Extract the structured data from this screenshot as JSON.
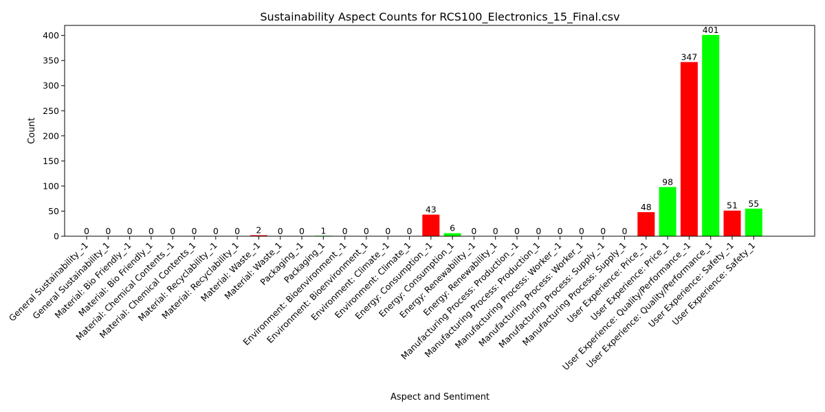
{
  "chart_data": {
    "type": "bar",
    "title": "Sustainability Aspect Counts for RCS100_Electronics_15_Final.csv",
    "xlabel": "Aspect and Sentiment",
    "ylabel": "Count",
    "ylim": [
      0,
      420
    ],
    "yticks": [
      0,
      50,
      100,
      150,
      200,
      250,
      300,
      350,
      400
    ],
    "grid": false,
    "legend": "none",
    "colors": {
      "negative": "#ff0000",
      "positive": "#00ff00"
    },
    "categories": [
      "General Sustainability_-1",
      "General Sustainability_1",
      "Material: Bio Friendly_-1",
      "Material: Bio Friendly_1",
      "Material: Chemical Contents_-1",
      "Material: Chemical Contents_1",
      "Material: Recyclability_-1",
      "Material: Recyclability_1",
      "Material: Waste_-1",
      "Material: Waste_1",
      "Packaging_-1",
      "Packaging_1",
      "Environment: Bioenvironment_-1",
      "Environment: Bioenvironment_1",
      "Environment: Climate_-1",
      "Environment: Climate_1",
      "Energy: Consumption_-1",
      "Energy: Consumption_1",
      "Energy: Renewability_-1",
      "Energy: Renewability_1",
      "Manufacturing Process: Production_-1",
      "Manufacturing Process: Production_1",
      "Manufacturing Process: Worker_-1",
      "Manufacturing Process: Worker_1",
      "Manufacturing Process: Supply_-1",
      "Manufacturing Process: Supply_1",
      "User Experience: Price_-1",
      "User Experience: Price_1",
      "User Experience: Quality/Performance_-1",
      "User Experience: Quality/Performance_1",
      "User Experience: Safety_-1",
      "User Experience: Safety_1"
    ],
    "values": [
      0,
      0,
      0,
      0,
      0,
      0,
      0,
      0,
      2,
      0,
      0,
      1,
      0,
      0,
      0,
      0,
      43,
      6,
      0,
      0,
      0,
      0,
      0,
      0,
      0,
      0,
      48,
      98,
      347,
      401,
      51,
      55
    ]
  }
}
